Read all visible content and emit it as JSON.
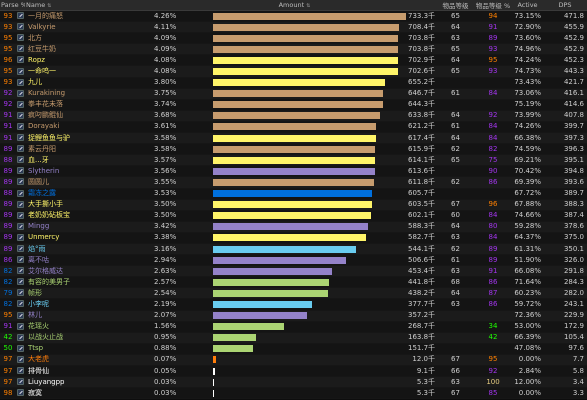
{
  "headers": {
    "parse": "Parse %",
    "name": "Name",
    "amount": "Amount",
    "ilvl": "物品等级",
    "ilvl_pct": "物品等级 %",
    "active": "Active",
    "dps": "DPS",
    "sort_indicator": "⇅"
  },
  "colors": {
    "parse_legendary": "#ff8000",
    "parse_epic": "#a335ee",
    "parse_rare": "#0070dd",
    "parse_uncommon": "#1eff00",
    "parse_common": "#9d9d9d",
    "parse_artifact": "#e5cc80",
    "class_warrior": "#c79c6e",
    "class_rogue": "#fff569",
    "class_shaman": "#0070de",
    "class_mage": "#69ccf0",
    "class_warlock": "#9482c9",
    "class_hunter": "#abd473",
    "class_druid": "#ff7d0a",
    "class_paladin": "#f58cba",
    "class_priest": "#ffffff"
  },
  "rows": [
    {
      "parse": "93",
      "parse_color": "#ff8000",
      "name": "一月的痛怒",
      "class_color": "#c79c6e",
      "pct": "4.26%",
      "fill": 1.0,
      "amount": "733.3千",
      "ilvl": "65",
      "ilvl_pct": "94",
      "ilvl_pct_color": "#ff8000",
      "active": "73.15%",
      "dps": "471.8"
    },
    {
      "parse": "93",
      "parse_color": "#ff8000",
      "name": "Valkyrie",
      "class_color": "#c79c6e",
      "pct": "4.11%",
      "fill": 0.966,
      "amount": "708.4千",
      "ilvl": "64",
      "ilvl_pct": "91",
      "ilvl_pct_color": "#a335ee",
      "active": "72.90%",
      "dps": "455.9"
    },
    {
      "parse": "95",
      "parse_color": "#ff8000",
      "name": "北方",
      "class_color": "#c79c6e",
      "pct": "4.09%",
      "fill": 0.96,
      "amount": "703.8千",
      "ilvl": "63",
      "ilvl_pct": "89",
      "ilvl_pct_color": "#a335ee",
      "active": "73.60%",
      "dps": "452.9"
    },
    {
      "parse": "95",
      "parse_color": "#ff8000",
      "name": "红豆牛奶",
      "class_color": "#c79c6e",
      "pct": "4.09%",
      "fill": 0.96,
      "amount": "703.8千",
      "ilvl": "65",
      "ilvl_pct": "93",
      "ilvl_pct_color": "#a335ee",
      "active": "74.96%",
      "dps": "452.9"
    },
    {
      "parse": "96",
      "parse_color": "#ff8000",
      "name": "Ropz",
      "class_color": "#fff569",
      "pct": "4.08%",
      "fill": 0.958,
      "amount": "702.9千",
      "ilvl": "64",
      "ilvl_pct": "95",
      "ilvl_pct_color": "#ff8000",
      "active": "74.24%",
      "dps": "452.3"
    },
    {
      "parse": "95",
      "parse_color": "#ff8000",
      "name": "一命呜一",
      "class_color": "#fff569",
      "pct": "4.08%",
      "fill": 0.958,
      "amount": "702.6千",
      "ilvl": "65",
      "ilvl_pct": "93",
      "ilvl_pct_color": "#a335ee",
      "active": "74.73%",
      "dps": "443.3"
    },
    {
      "parse": "93",
      "parse_color": "#ff8000",
      "name": "九儿",
      "class_color": "#fff569",
      "pct": "3.80%",
      "fill": 0.893,
      "amount": "655.2千",
      "ilvl": "",
      "ilvl_pct": "",
      "ilvl_pct_color": "#a335ee",
      "active": "73.43%",
      "dps": "421.7"
    },
    {
      "parse": "92",
      "parse_color": "#a335ee",
      "name": "Kurakining",
      "class_color": "#c79c6e",
      "pct": "3.75%",
      "fill": 0.882,
      "amount": "646.7千",
      "ilvl": "61",
      "ilvl_pct": "84",
      "ilvl_pct_color": "#a335ee",
      "active": "73.06%",
      "dps": "416.1"
    },
    {
      "parse": "92",
      "parse_color": "#a335ee",
      "name": "拳丰花未落",
      "class_color": "#c79c6e",
      "pct": "3.74%",
      "fill": 0.879,
      "amount": "644.3千",
      "ilvl": "",
      "ilvl_pct": "",
      "ilvl_pct_color": "#a335ee",
      "active": "75.19%",
      "dps": "414.6"
    },
    {
      "parse": "91",
      "parse_color": "#a335ee",
      "name": "疯叼鹏鲲仙",
      "class_color": "#c79c6e",
      "pct": "3.68%",
      "fill": 0.864,
      "amount": "633.8千",
      "ilvl": "64",
      "ilvl_pct": "92",
      "ilvl_pct_color": "#a335ee",
      "active": "73.99%",
      "dps": "407.8"
    },
    {
      "parse": "91",
      "parse_color": "#a335ee",
      "name": "Dorayaki",
      "class_color": "#c79c6e",
      "pct": "3.61%",
      "fill": 0.847,
      "amount": "621.2千",
      "ilvl": "61",
      "ilvl_pct": "84",
      "ilvl_pct_color": "#a335ee",
      "active": "74.26%",
      "dps": "399.7"
    },
    {
      "parse": "91",
      "parse_color": "#a335ee",
      "name": "捉鲤鱼鱼与驴",
      "class_color": "#fff569",
      "pct": "3.58%",
      "fill": 0.842,
      "amount": "617.4千",
      "ilvl": "64",
      "ilvl_pct": "84",
      "ilvl_pct_color": "#a335ee",
      "active": "66.38%",
      "dps": "397.3"
    },
    {
      "parse": "89",
      "parse_color": "#a335ee",
      "name": "素云丹阳",
      "class_color": "#c79c6e",
      "pct": "3.58%",
      "fill": 0.84,
      "amount": "615.9千",
      "ilvl": "62",
      "ilvl_pct": "82",
      "ilvl_pct_color": "#a335ee",
      "active": "74.59%",
      "dps": "396.3"
    },
    {
      "parse": "88",
      "parse_color": "#a335ee",
      "name": "血...牙",
      "class_color": "#fff569",
      "pct": "3.57%",
      "fill": 0.837,
      "amount": "614.1千",
      "ilvl": "65",
      "ilvl_pct": "75",
      "ilvl_pct_color": "#a335ee",
      "active": "69.21%",
      "dps": "395.1"
    },
    {
      "parse": "89",
      "parse_color": "#a335ee",
      "name": "Slytherin",
      "class_color": "#9482c9",
      "pct": "3.56%",
      "fill": 0.837,
      "amount": "613.6千",
      "ilvl": "",
      "ilvl_pct": "90",
      "ilvl_pct_color": "#a335ee",
      "active": "70.42%",
      "dps": "394.8"
    },
    {
      "parse": "89",
      "parse_color": "#a335ee",
      "name": "圆圆儿",
      "class_color": "#c79c6e",
      "pct": "3.55%",
      "fill": 0.834,
      "amount": "611.8千",
      "ilvl": "62",
      "ilvl_pct": "86",
      "ilvl_pct_color": "#a335ee",
      "active": "69.39%",
      "dps": "393.6"
    },
    {
      "parse": "88",
      "parse_color": "#a335ee",
      "name": "霜冻之露",
      "class_color": "#0070de",
      "pct": "3.53%",
      "fill": 0.826,
      "amount": "605.7千",
      "ilvl": "",
      "ilvl_pct": "",
      "ilvl_pct_color": "#a335ee",
      "active": "67.72%",
      "dps": "389.7"
    },
    {
      "parse": "89",
      "parse_color": "#a335ee",
      "name": "大手撕小手",
      "class_color": "#fff569",
      "pct": "3.50%",
      "fill": 0.822,
      "amount": "603.5千",
      "ilvl": "67",
      "ilvl_pct": "96",
      "ilvl_pct_color": "#ff8000",
      "active": "67.88%",
      "dps": "388.3"
    },
    {
      "parse": "89",
      "parse_color": "#a335ee",
      "name": "老奶奶砧板宝",
      "class_color": "#fff569",
      "pct": "3.50%",
      "fill": 0.821,
      "amount": "602.1千",
      "ilvl": "60",
      "ilvl_pct": "84",
      "ilvl_pct_color": "#a335ee",
      "active": "74.66%",
      "dps": "387.4"
    },
    {
      "parse": "89",
      "parse_color": "#a335ee",
      "name": "Mingg",
      "class_color": "#9482c9",
      "pct": "3.42%",
      "fill": 0.802,
      "amount": "588.3千",
      "ilvl": "64",
      "ilvl_pct": "80",
      "ilvl_pct_color": "#a335ee",
      "active": "59.28%",
      "dps": "378.6"
    },
    {
      "parse": "89",
      "parse_color": "#a335ee",
      "name": "Unmercy",
      "class_color": "#fff569",
      "pct": "3.38%",
      "fill": 0.795,
      "amount": "582.7千",
      "ilvl": "63",
      "ilvl_pct": "84",
      "ilvl_pct_color": "#a335ee",
      "active": "64.37%",
      "dps": "375.0"
    },
    {
      "parse": "89",
      "parse_color": "#a335ee",
      "name": "焰°雨",
      "class_color": "#69ccf0",
      "pct": "3.16%",
      "fill": 0.742,
      "amount": "544.1千",
      "ilvl": "62",
      "ilvl_pct": "89",
      "ilvl_pct_color": "#a335ee",
      "active": "61.31%",
      "dps": "350.1"
    },
    {
      "parse": "86",
      "parse_color": "#a335ee",
      "name": "离不咕",
      "class_color": "#9482c9",
      "pct": "2.94%",
      "fill": 0.69,
      "amount": "506.6千",
      "ilvl": "61",
      "ilvl_pct": "89",
      "ilvl_pct_color": "#a335ee",
      "active": "51.90%",
      "dps": "326.0"
    },
    {
      "parse": "82",
      "parse_color": "#0070dd",
      "name": "艾尔格威达",
      "class_color": "#9482c9",
      "pct": "2.63%",
      "fill": 0.618,
      "amount": "453.4千",
      "ilvl": "63",
      "ilvl_pct": "91",
      "ilvl_pct_color": "#a335ee",
      "active": "66.08%",
      "dps": "291.8"
    },
    {
      "parse": "82",
      "parse_color": "#0070dd",
      "name": "有容的美男子",
      "class_color": "#abd473",
      "pct": "2.57%",
      "fill": 0.602,
      "amount": "441.8千",
      "ilvl": "68",
      "ilvl_pct": "86",
      "ilvl_pct_color": "#a335ee",
      "active": "71.64%",
      "dps": "284.3"
    },
    {
      "parse": "79",
      "parse_color": "#0070dd",
      "name": "帧形",
      "class_color": "#abd473",
      "pct": "2.54%",
      "fill": 0.597,
      "amount": "438.2千",
      "ilvl": "64",
      "ilvl_pct": "87",
      "ilvl_pct_color": "#a335ee",
      "active": "60.23%",
      "dps": "282.0"
    },
    {
      "parse": "82",
      "parse_color": "#0070dd",
      "name": "小李呢",
      "class_color": "#69ccf0",
      "pct": "2.19%",
      "fill": 0.515,
      "amount": "377.7千",
      "ilvl": "63",
      "ilvl_pct": "86",
      "ilvl_pct_color": "#a335ee",
      "active": "59.72%",
      "dps": "243.1"
    },
    {
      "parse": "95",
      "parse_color": "#ff8000",
      "name": "林儿",
      "class_color": "#9482c9",
      "pct": "2.07%",
      "fill": 0.487,
      "amount": "357.2千",
      "ilvl": "",
      "ilvl_pct": "",
      "ilvl_pct_color": "#a335ee",
      "active": "72.36%",
      "dps": "229.9"
    },
    {
      "parse": "91",
      "parse_color": "#a335ee",
      "name": "花瑶火",
      "class_color": "#abd473",
      "pct": "1.56%",
      "fill": 0.366,
      "amount": "268.7千",
      "ilvl": "",
      "ilvl_pct": "34",
      "ilvl_pct_color": "#1eff00",
      "active": "53.00%",
      "dps": "172.9"
    },
    {
      "parse": "42",
      "parse_color": "#1eff00",
      "name": "以战火止战",
      "class_color": "#abd473",
      "pct": "0.95%",
      "fill": 0.222,
      "amount": "163.8千",
      "ilvl": "",
      "ilvl_pct": "42",
      "ilvl_pct_color": "#1eff00",
      "active": "66.39%",
      "dps": "105.4"
    },
    {
      "parse": "50",
      "parse_color": "#1eff00",
      "name": "Ttsp",
      "class_color": "#abd473",
      "pct": "0.88%",
      "fill": 0.206,
      "amount": "151.7千",
      "ilvl": "",
      "ilvl_pct": "",
      "ilvl_pct_color": "#1eff00",
      "active": "47.08%",
      "dps": "97.6"
    },
    {
      "parse": "97",
      "parse_color": "#ff8000",
      "name": "大老虎",
      "class_color": "#ff7d0a",
      "pct": "0.07%",
      "fill": 0.016,
      "amount": "12.0千",
      "ilvl": "67",
      "ilvl_pct": "95",
      "ilvl_pct_color": "#ff8000",
      "active": "0.00%",
      "dps": "7.7"
    },
    {
      "parse": "97",
      "parse_color": "#ff8000",
      "name": "排骨仙",
      "class_color": "#ffffff",
      "pct": "0.05%",
      "fill": 0.012,
      "amount": "9.1千",
      "ilvl": "66",
      "ilvl_pct": "92",
      "ilvl_pct_color": "#a335ee",
      "active": "2.84%",
      "dps": "5.8"
    },
    {
      "parse": "97",
      "parse_color": "#ff8000",
      "name": "Liuyangpp",
      "class_color": "#ffffff",
      "pct": "0.03%",
      "fill": 0.007,
      "amount": "5.3千",
      "ilvl": "63",
      "ilvl_pct": "100",
      "ilvl_pct_color": "#e5cc80",
      "active": "12.00%",
      "dps": "3.4"
    },
    {
      "parse": "98",
      "parse_color": "#ff8000",
      "name": "寂寞",
      "class_color": "#ffffff",
      "pct": "0.03%",
      "fill": 0.007,
      "amount": "5.3千",
      "ilvl": "67",
      "ilvl_pct": "85",
      "ilvl_pct_color": "#a335ee",
      "active": "0.00%",
      "dps": "3.3"
    }
  ]
}
